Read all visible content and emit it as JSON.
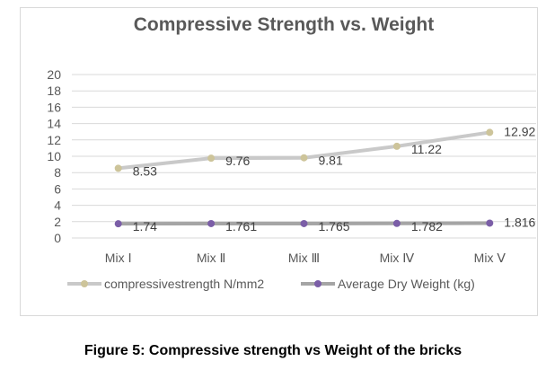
{
  "chart_data": {
    "type": "line",
    "title": "Compressive Strength vs. Weight",
    "categories": [
      "Mix Ⅰ",
      "Mix Ⅱ",
      "Mix Ⅲ",
      "Mix Ⅳ",
      "Mix Ⅴ"
    ],
    "series": [
      {
        "name": "compressivestrength  N/mm2",
        "values": [
          8.53,
          9.76,
          9.81,
          11.22,
          12.92
        ],
        "labels": [
          "8.53",
          "9.76",
          "9.81",
          "11.22",
          "12.92"
        ],
        "line_color": "#c9c9c9",
        "marker_color": "#cdc49a"
      },
      {
        "name": "Average Dry Weight (kg)",
        "values": [
          1.74,
          1.761,
          1.765,
          1.782,
          1.816
        ],
        "labels": [
          "1.74",
          "1.761",
          "1.765",
          "1.782",
          "1.816"
        ],
        "line_color": "#a5a5a5",
        "marker_color": "#7b5ea7"
      }
    ],
    "yticks": [
      "0",
      "2",
      "4",
      "6",
      "8",
      "10",
      "12",
      "14",
      "16",
      "18",
      "20"
    ],
    "ylim": [
      0,
      20
    ],
    "grid": true,
    "legend": "bottom",
    "xlabel": "",
    "ylabel": ""
  },
  "caption": "Figure 5: Compressive strength vs Weight of the bricks"
}
